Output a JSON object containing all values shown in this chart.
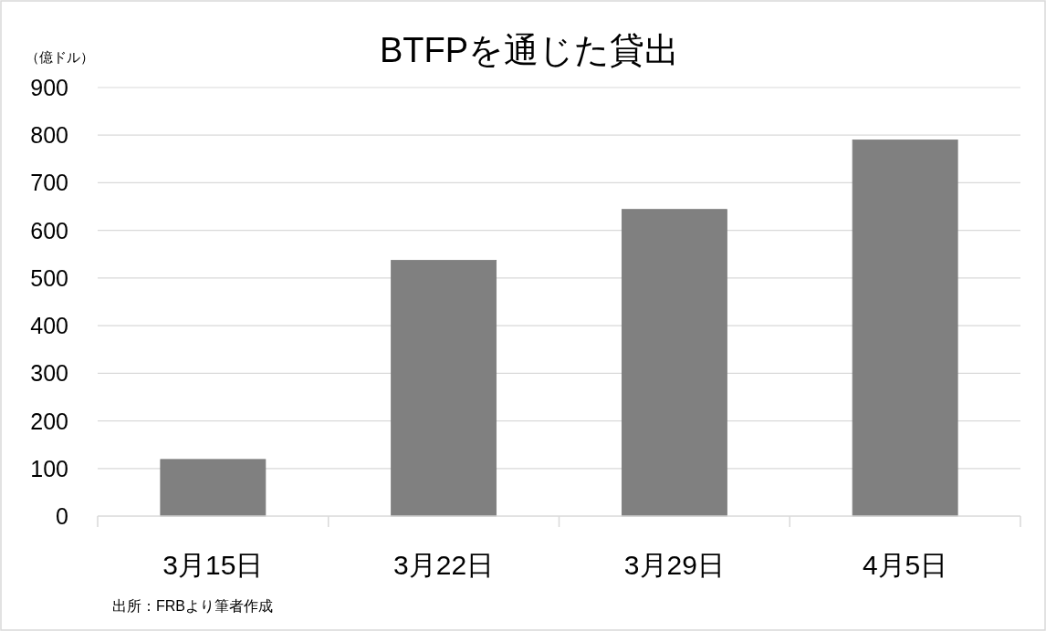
{
  "chart_data": {
    "type": "bar",
    "title": "BTFPを通じた貸出",
    "ylabel": "（億ドル）",
    "categories": [
      "3月15日",
      "3月22日",
      "3月29日",
      "4月5日"
    ],
    "values": [
      119,
      537,
      644,
      790
    ],
    "color": "#808080",
    "ylim": [
      0,
      900
    ],
    "yticks": [
      0,
      100,
      200,
      300,
      400,
      500,
      600,
      700,
      800,
      900
    ],
    "grid": "y",
    "annotations": [
      "出所：FRBより筆者作成"
    ]
  }
}
